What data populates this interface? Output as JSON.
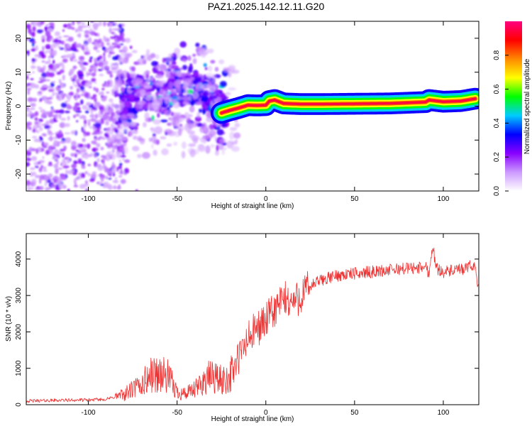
{
  "title": "PAZ1.2025.142.12.11.G20",
  "chart_data": [
    {
      "type": "heatmap",
      "xlabel": "Height of straight line (km)",
      "ylabel": "Frequency (Hz)",
      "xlim": [
        -135,
        120
      ],
      "ylim": [
        -25,
        25
      ],
      "xticks": [
        -100,
        -50,
        0,
        50,
        100
      ],
      "yticks": [
        -20,
        -10,
        0,
        10,
        20
      ],
      "xtick_labels": [
        "-100",
        "-50",
        "0",
        "50",
        "100"
      ],
      "ytick_labels": [
        "-20",
        "-10",
        "0",
        "10",
        "20"
      ],
      "ridge": {
        "x": [
          -25,
          -20,
          -15,
          -10,
          -5,
          0,
          2,
          5,
          10,
          20,
          30,
          50,
          70,
          90,
          92,
          100,
          110,
          118
        ],
        "y": [
          -2,
          -1.2,
          -0.5,
          0.3,
          0.2,
          0.3,
          1.5,
          1.8,
          0.8,
          0.6,
          0.6,
          0.7,
          0.8,
          1.2,
          1.8,
          1.3,
          1.5,
          2.2
        ]
      },
      "colorbar": {
        "label": "Normalized spectral amplitude",
        "ticks": [
          0.0,
          0.2,
          0.4,
          0.6,
          0.8
        ],
        "tick_labels": [
          "0.0",
          "0.2",
          "0.4",
          "0.6",
          "0.8"
        ],
        "range": [
          0,
          1
        ],
        "colors": [
          "#ffffff",
          "#cc99ff",
          "#8800ff",
          "#0000ff",
          "#00ccff",
          "#00ff00",
          "#ffff00",
          "#ff8800",
          "#ff0000",
          "#ff0080"
        ]
      }
    },
    {
      "type": "line",
      "xlabel": "Height of straight line (km)",
      "ylabel": "SNR (10 * v/v)",
      "xlim": [
        -135,
        120
      ],
      "ylim": [
        0,
        4700
      ],
      "xticks": [
        -100,
        -50,
        0,
        50,
        100
      ],
      "yticks": [
        0,
        1000,
        2000,
        3000,
        4000
      ],
      "xtick_labels": [
        "-100",
        "-50",
        "0",
        "50",
        "100"
      ],
      "ytick_labels": [
        "0",
        "1000",
        "2000",
        "3000",
        "4000"
      ],
      "line_color": "#ee3333",
      "series": [
        {
          "name": "SNR",
          "x": [
            -135,
            -120,
            -100,
            -90,
            -80,
            -70,
            -65,
            -60,
            -55,
            -50,
            -45,
            -40,
            -35,
            -30,
            -25,
            -20,
            -15,
            -10,
            -5,
            0,
            5,
            10,
            15,
            20,
            25,
            30,
            40,
            50,
            60,
            70,
            80,
            85,
            90,
            92,
            94,
            96,
            100,
            110,
            118,
            120
          ],
          "y": [
            100,
            120,
            130,
            150,
            280,
            550,
            800,
            850,
            750,
            350,
            300,
            400,
            650,
            800,
            650,
            800,
            1300,
            1800,
            2100,
            2300,
            2600,
            2900,
            2800,
            3000,
            3250,
            3400,
            3550,
            3600,
            3650,
            3700,
            3750,
            3750,
            3800,
            3600,
            4400,
            3750,
            3650,
            3700,
            3850,
            3100
          ]
        }
      ]
    }
  ]
}
